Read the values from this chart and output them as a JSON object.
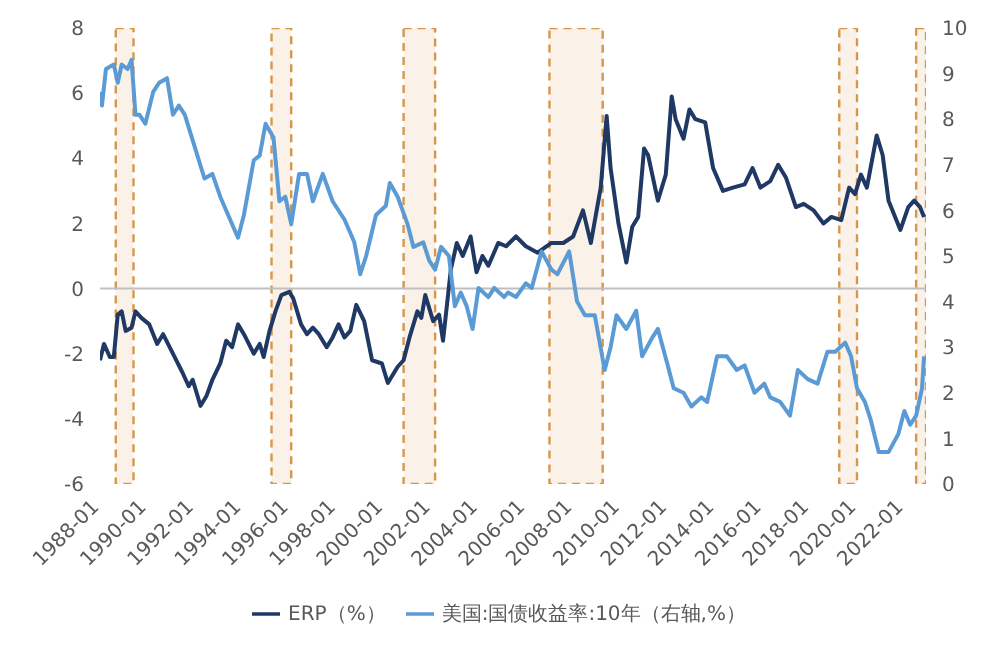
{
  "chart_data": {
    "type": "line",
    "xlim": [
      "1988-01",
      "2022-12"
    ],
    "xticks": [
      "1988-01",
      "1990-01",
      "1992-01",
      "1994-01",
      "1996-01",
      "1998-01",
      "2000-01",
      "2002-01",
      "2004-01",
      "2006-01",
      "2008-01",
      "2010-01",
      "2012-01",
      "2014-01",
      "2016-01",
      "2018-01",
      "2020-01",
      "2022-01"
    ],
    "ylim": [
      -6,
      8
    ],
    "yticks": [
      -6,
      -4,
      -2,
      0,
      2,
      4,
      6,
      8
    ],
    "y2lim": [
      0,
      10
    ],
    "y2ticks": [
      0,
      1,
      2,
      3,
      4,
      5,
      6,
      7,
      8,
      9,
      10
    ],
    "legend": "bottom",
    "marker": "none",
    "line_style": "solid",
    "ref_lines": [
      {
        "axis": "y",
        "value": 0,
        "color": "#bfbfbf"
      }
    ],
    "bands": [
      {
        "axis": "x",
        "from": "1988-09",
        "to": "1989-06",
        "color": "#d9954a"
      },
      {
        "axis": "x",
        "from": "1995-04",
        "to": "1996-02",
        "color": "#d9954a"
      },
      {
        "axis": "x",
        "from": "2000-11",
        "to": "2002-03",
        "color": "#d9954a"
      },
      {
        "axis": "x",
        "from": "2007-01",
        "to": "2009-04",
        "color": "#d9954a"
      },
      {
        "axis": "x",
        "from": "2019-04",
        "to": "2020-01",
        "color": "#d9954a"
      },
      {
        "axis": "x",
        "from": "2022-07",
        "to": "2022-12",
        "color": "#d9954a"
      }
    ],
    "series": [
      {
        "name": "ERP（%）",
        "color": "#1f3864",
        "x": [
          "1988-01",
          "1988-03",
          "1988-06",
          "1988-08",
          "1988-10",
          "1988-12",
          "1989-02",
          "1989-05",
          "1989-07",
          "1989-10",
          "1990-02",
          "1990-06",
          "1990-09",
          "1991-02",
          "1991-07",
          "1991-10",
          "1991-12",
          "1992-04",
          "1992-07",
          "1992-10",
          "1993-02",
          "1993-05",
          "1993-08",
          "1993-11",
          "1994-02",
          "1994-07",
          "1994-10",
          "1994-12",
          "1995-03",
          "1995-06",
          "1995-09",
          "1996-01",
          "1996-03",
          "1996-07",
          "1996-10",
          "1997-01",
          "1997-04",
          "1997-08",
          "1997-11",
          "1998-02",
          "1998-05",
          "1998-08",
          "1998-11",
          "1999-03",
          "1999-07",
          "1999-12",
          "2000-03",
          "2000-08",
          "2000-11",
          "2001-02",
          "2001-06",
          "2001-08",
          "2001-10",
          "2002-02",
          "2002-05",
          "2002-07",
          "2002-11",
          "2003-02",
          "2003-05",
          "2003-09",
          "2003-12",
          "2004-03",
          "2004-06",
          "2004-11",
          "2005-03",
          "2005-08",
          "2006-01",
          "2006-07",
          "2007-02",
          "2007-08",
          "2008-01",
          "2008-06",
          "2008-10",
          "2009-03",
          "2009-06",
          "2009-08",
          "2009-12",
          "2010-04",
          "2010-07",
          "2010-10",
          "2011-01",
          "2011-03",
          "2011-08",
          "2011-12",
          "2012-03",
          "2012-05",
          "2012-09",
          "2012-12",
          "2013-03",
          "2013-08",
          "2013-12",
          "2014-05",
          "2014-10",
          "2015-04",
          "2015-08",
          "2015-12",
          "2016-05",
          "2016-09",
          "2017-01",
          "2017-06",
          "2017-10",
          "2018-03",
          "2018-08",
          "2018-12",
          "2019-05",
          "2019-09",
          "2019-12",
          "2020-03",
          "2020-06",
          "2020-11",
          "2021-02",
          "2021-05",
          "2021-11",
          "2022-03",
          "2022-06",
          "2022-09",
          "2022-11"
        ],
        "values": [
          -2.2,
          -1.7,
          -2.1,
          -2.1,
          -0.8,
          -0.7,
          -1.3,
          -1.2,
          -0.7,
          -0.9,
          -1.1,
          -1.7,
          -1.4,
          -2.0,
          -2.6,
          -3.0,
          -2.8,
          -3.6,
          -3.3,
          -2.8,
          -2.3,
          -1.6,
          -1.8,
          -1.1,
          -1.4,
          -2.0,
          -1.7,
          -2.1,
          -1.3,
          -0.7,
          -0.2,
          -0.1,
          -0.3,
          -1.1,
          -1.4,
          -1.2,
          -1.4,
          -1.8,
          -1.5,
          -1.1,
          -1.5,
          -1.3,
          -0.5,
          -1.0,
          -2.2,
          -2.3,
          -2.9,
          -2.4,
          -2.2,
          -1.5,
          -0.7,
          -0.9,
          -0.2,
          -1.0,
          -0.8,
          -1.6,
          0.6,
          1.4,
          1.0,
          1.6,
          0.5,
          1.0,
          0.7,
          1.4,
          1.3,
          1.6,
          1.3,
          1.1,
          1.4,
          1.4,
          1.6,
          2.4,
          1.4,
          3.1,
          5.3,
          3.7,
          2.0,
          0.8,
          1.9,
          2.2,
          4.3,
          4.1,
          2.7,
          3.5,
          5.9,
          5.2,
          4.6,
          5.5,
          5.2,
          5.1,
          3.7,
          3.0,
          3.1,
          3.2,
          3.7,
          3.1,
          3.3,
          3.8,
          3.4,
          2.5,
          2.6,
          2.4,
          2.0,
          2.2,
          2.1,
          3.1,
          2.9,
          3.5,
          3.1,
          4.7,
          4.1,
          2.7,
          1.8,
          2.5,
          2.7,
          2.5,
          2.2
        ]
      },
      {
        "name": "美国:国债收益率:10年（右轴,%）",
        "color": "#5b9bd5",
        "axis": "y2",
        "x": [
          "1988-01",
          "1988-02",
          "1988-04",
          "1988-08",
          "1988-10",
          "1988-12",
          "1989-03",
          "1989-05",
          "1989-07",
          "1989-09",
          "1989-12",
          "1990-04",
          "1990-07",
          "1990-11",
          "1991-02",
          "1991-05",
          "1991-08",
          "1992-01",
          "1992-06",
          "1992-10",
          "1993-02",
          "1993-06",
          "1993-11",
          "1994-02",
          "1994-07",
          "1994-10",
          "1995-01",
          "1995-05",
          "1995-08",
          "1995-11",
          "1996-02",
          "1996-06",
          "1996-10",
          "1997-01",
          "1997-06",
          "1997-11",
          "1998-05",
          "1998-10",
          "1999-01",
          "1999-04",
          "1999-09",
          "2000-02",
          "2000-04",
          "2000-08",
          "2001-01",
          "2001-04",
          "2001-09",
          "2001-12",
          "2002-03",
          "2002-06",
          "2002-10",
          "2003-01",
          "2003-04",
          "2003-07",
          "2003-10",
          "2004-01",
          "2004-06",
          "2004-09",
          "2005-02",
          "2005-04",
          "2005-08",
          "2006-01",
          "2006-04",
          "2006-09",
          "2007-02",
          "2007-05",
          "2007-11",
          "2008-03",
          "2008-07",
          "2008-12",
          "2009-05",
          "2009-08",
          "2009-11",
          "2010-04",
          "2010-09",
          "2010-12",
          "2011-05",
          "2011-08",
          "2012-01",
          "2012-04",
          "2012-09",
          "2013-01",
          "2013-06",
          "2013-09",
          "2014-02",
          "2014-07",
          "2014-12",
          "2015-04",
          "2015-09",
          "2016-02",
          "2016-05",
          "2016-10",
          "2017-03",
          "2017-07",
          "2017-12",
          "2018-05",
          "2018-10",
          "2019-02",
          "2019-07",
          "2019-10",
          "2020-01",
          "2020-05",
          "2020-08",
          "2020-12",
          "2021-05",
          "2021-10",
          "2022-01",
          "2022-04",
          "2022-07",
          "2022-10",
          "2022-11"
        ],
        "values": [
          8.6,
          8.3,
          9.1,
          9.2,
          8.8,
          9.2,
          9.1,
          9.3,
          8.1,
          8.1,
          7.9,
          8.6,
          8.8,
          8.9,
          8.1,
          8.3,
          8.1,
          7.4,
          6.7,
          6.8,
          6.3,
          5.9,
          5.4,
          5.9,
          7.1,
          7.2,
          7.9,
          7.6,
          6.2,
          6.3,
          5.7,
          6.8,
          6.8,
          6.2,
          6.8,
          6.2,
          5.8,
          5.3,
          4.6,
          5.0,
          5.9,
          6.1,
          6.6,
          6.3,
          5.7,
          5.2,
          5.3,
          4.9,
          4.7,
          5.2,
          5.0,
          3.9,
          4.2,
          3.9,
          3.4,
          4.3,
          4.1,
          4.3,
          4.1,
          4.2,
          4.1,
          4.4,
          4.3,
          5.1,
          4.7,
          4.6,
          5.1,
          4.0,
          3.7,
          3.7,
          2.5,
          3.0,
          3.7,
          3.4,
          3.8,
          2.8,
          3.2,
          3.4,
          2.6,
          2.1,
          2.0,
          1.7,
          1.9,
          1.8,
          2.8,
          2.8,
          2.5,
          2.6,
          2.0,
          2.2,
          1.9,
          1.8,
          1.5,
          2.5,
          2.3,
          2.2,
          2.9,
          2.9,
          3.1,
          2.8,
          2.1,
          1.8,
          1.4,
          0.7,
          0.7,
          1.1,
          1.6,
          1.3,
          1.5,
          2.1,
          2.8
        ]
      }
    ]
  }
}
